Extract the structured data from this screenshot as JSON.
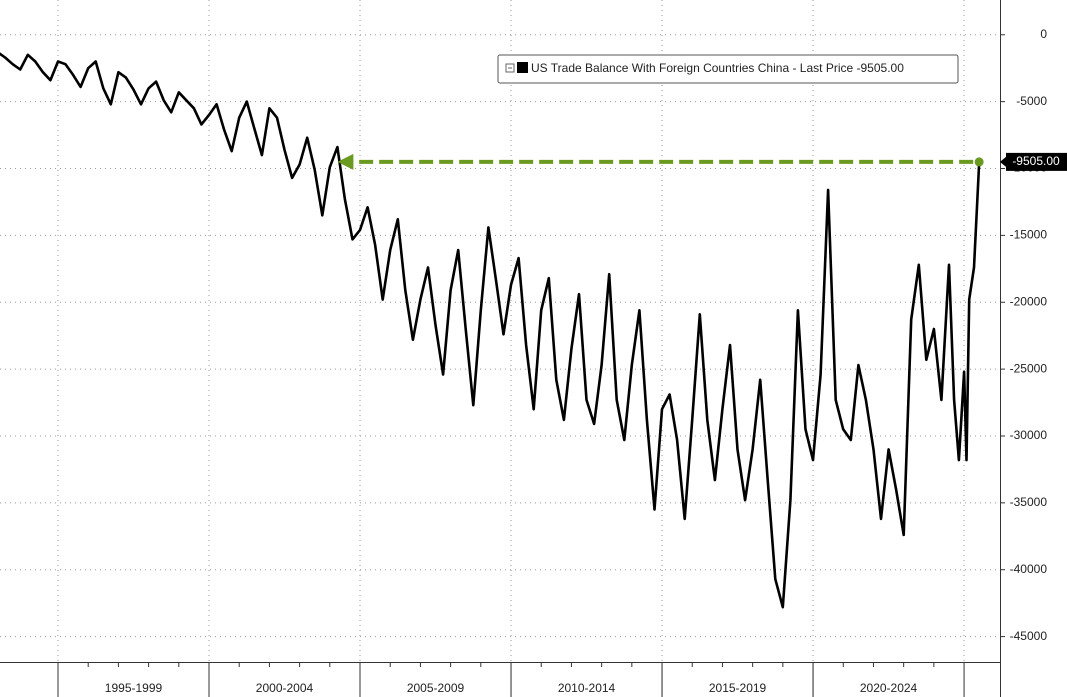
{
  "chart_data": {
    "type": "line",
    "xlim": [
      1993.08,
      2026.19
    ],
    "ylim": [
      -46900,
      2600
    ],
    "yticks": [
      0,
      -5000,
      -10000,
      -15000,
      -20000,
      -25000,
      -30000,
      -35000,
      -40000,
      -45000
    ],
    "xticks": [
      {
        "value": 1997.5,
        "label": "1995-1999"
      },
      {
        "value": 2002.5,
        "label": "2000-2004"
      },
      {
        "value": 2007.5,
        "label": "2005-2009"
      },
      {
        "value": 2012.5,
        "label": "2010-2014"
      },
      {
        "value": 2017.5,
        "label": "2015-2019"
      },
      {
        "value": 2022.5,
        "label": "2020-2024"
      }
    ],
    "grid": true,
    "legend": "upper right",
    "series": [
      {
        "name": "US Trade Balance With Foreign Countries China",
        "last_label": "- Last Price",
        "last_value_label": "-9505.00",
        "color": "#000000",
        "marker_color": "#6a9a1f",
        "x": [
          1993.0,
          1993.25,
          1993.5,
          1993.75,
          1994.0,
          1994.25,
          1994.5,
          1994.75,
          1995.0,
          1995.25,
          1995.5,
          1995.75,
          1996.0,
          1996.25,
          1996.5,
          1996.75,
          1997.0,
          1997.25,
          1997.5,
          1997.75,
          1998.0,
          1998.25,
          1998.5,
          1998.75,
          1999.0,
          1999.25,
          1999.5,
          1999.75,
          2000.0,
          2000.25,
          2000.5,
          2000.75,
          2001.0,
          2001.25,
          2001.5,
          2001.75,
          2002.0,
          2002.25,
          2002.5,
          2002.75,
          2003.0,
          2003.25,
          2003.5,
          2003.75,
          2004.0,
          2004.25,
          2004.5,
          2004.75,
          2005.0,
          2005.25,
          2005.5,
          2005.75,
          2006.0,
          2006.25,
          2006.5,
          2006.75,
          2007.0,
          2007.25,
          2007.5,
          2007.75,
          2008.0,
          2008.25,
          2008.5,
          2008.75,
          2009.0,
          2009.25,
          2009.5,
          2009.75,
          2010.0,
          2010.25,
          2010.5,
          2010.75,
          2011.0,
          2011.25,
          2011.5,
          2011.75,
          2012.0,
          2012.25,
          2012.5,
          2012.75,
          2013.0,
          2013.25,
          2013.5,
          2013.75,
          2014.0,
          2014.25,
          2014.5,
          2014.75,
          2015.0,
          2015.25,
          2015.5,
          2015.75,
          2016.0,
          2016.25,
          2016.5,
          2016.75,
          2017.0,
          2017.25,
          2017.5,
          2017.75,
          2018.0,
          2018.25,
          2018.5,
          2018.75,
          2019.0,
          2019.25,
          2019.5,
          2019.75,
          2020.0,
          2020.25,
          2020.5,
          2020.75,
          2021.0,
          2021.25,
          2021.5,
          2021.75,
          2022.0,
          2022.25,
          2022.5,
          2022.75,
          2023.0,
          2023.25,
          2023.5,
          2023.75,
          2024.0,
          2024.25,
          2024.5,
          2024.67,
          2024.83,
          2025.0,
          2025.08,
          2025.17,
          2025.33,
          2025.5
        ],
        "values": [
          -1300,
          -1700,
          -2200,
          -2600,
          -1500,
          -2000,
          -2800,
          -3400,
          -2000,
          -2200,
          -3000,
          -3900,
          -2500,
          -2000,
          -4000,
          -5200,
          -2800,
          -3200,
          -4100,
          -5200,
          -4000,
          -3500,
          -4900,
          -5800,
          -4300,
          -4900,
          -5500,
          -6700,
          -6000,
          -5200,
          -7100,
          -8700,
          -6200,
          -5000,
          -7000,
          -9000,
          -5500,
          -6200,
          -8600,
          -10700,
          -9700,
          -7700,
          -10100,
          -13500,
          -9900,
          -8400,
          -12300,
          -15300,
          -14600,
          -12900,
          -15700,
          -19800,
          -16100,
          -13800,
          -19100,
          -22800,
          -19800,
          -17400,
          -21700,
          -25400,
          -19100,
          -16100,
          -22000,
          -27700,
          -20600,
          -14400,
          -18300,
          -22400,
          -18700,
          -16700,
          -23200,
          -28000,
          -20600,
          -18200,
          -25800,
          -28800,
          -23500,
          -19400,
          -27300,
          -29100,
          -24700,
          -17900,
          -27300,
          -30300,
          -24700,
          -20600,
          -28800,
          -35500,
          -28000,
          -26900,
          -30300,
          -36200,
          -28800,
          -20900,
          -28800,
          -33300,
          -28000,
          -23200,
          -31000,
          -34800,
          -31000,
          -25800,
          -33300,
          -40700,
          -42800,
          -34800,
          -20600,
          -29500,
          -31800,
          -25400,
          -11600,
          -27300,
          -29500,
          -30300,
          -24700,
          -27300,
          -31000,
          -36200,
          -31000,
          -34000,
          -37400,
          -21300,
          -17200,
          -24300,
          -22000,
          -27300,
          -17200,
          -27300,
          -31800,
          -25200,
          -31800,
          -19800,
          -17400,
          -9505
        ]
      }
    ]
  }
}
